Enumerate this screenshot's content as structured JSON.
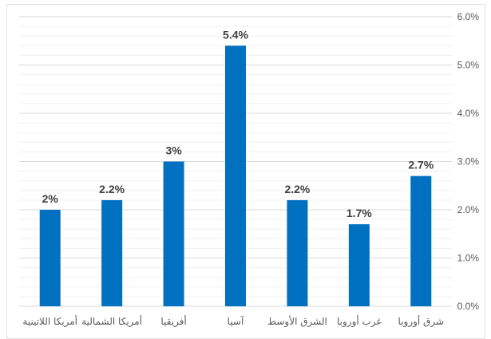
{
  "chart_data": {
    "type": "bar",
    "title": "",
    "xlabel": "",
    "ylabel": "",
    "categories": [
      "أمريكا اللاتينية",
      "أمريكا الشمالية",
      "أفريقيا",
      "آسيا",
      "الشرق الأوسط",
      "غرب أوروبا",
      "شرق أوروبا"
    ],
    "values": [
      2.0,
      2.2,
      3.0,
      5.4,
      2.2,
      1.7,
      2.7
    ],
    "data_labels": [
      "2%",
      "2.2%",
      "3%",
      "5.4%",
      "2.2%",
      "1.7%",
      "2.7%"
    ],
    "ylim": [
      0,
      6
    ],
    "yticks": [
      0,
      1,
      2,
      3,
      4,
      5,
      6
    ],
    "ytick_labels": [
      "0.0%",
      "1.0%",
      "2.0%",
      "3.0%",
      "4.0%",
      "5.0%",
      "6.0%"
    ],
    "y_axis_position": "right",
    "grid": true,
    "minor_grid_step": 0.2,
    "legend": "none",
    "colors": {
      "bar": "#0070c0",
      "grid_major": "#d9d9d9",
      "grid_minor": "#f0f0f0",
      "tick_text": "#595959",
      "label_text": "#404040"
    }
  }
}
